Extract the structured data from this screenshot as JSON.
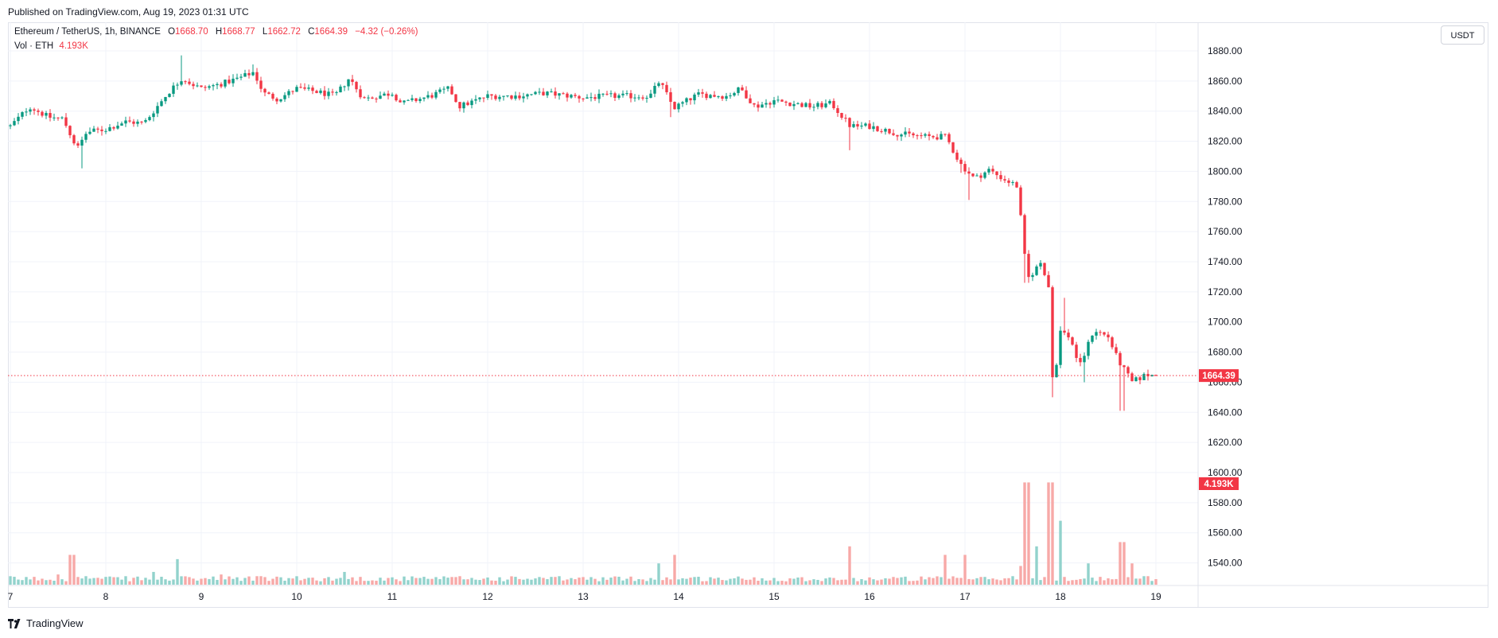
{
  "header": {
    "published": "Published on TradingView.com, Aug 19, 2023 01:31 UTC"
  },
  "legend": {
    "symbol": "Ethereum / TetherUS, 1h, BINANCE",
    "o_label": "O",
    "o_value": "1668.70",
    "h_label": "H",
    "h_value": "1668.77",
    "l_label": "L",
    "l_value": "1662.72",
    "c_label": "C",
    "c_value": "1664.39",
    "change": "−4.32 (−0.26%)",
    "vol_label": "Vol · ETH",
    "vol_value": "4.193K"
  },
  "currency": "USDT",
  "footer": {
    "brand": "TradingView"
  },
  "colors": {
    "up": "#089981",
    "down": "#f23645",
    "up_vol": "#92d2cc",
    "down_vol": "#f7a9a7",
    "grid": "#f0f3fa"
  },
  "chart_data": {
    "type": "candlestick",
    "symbol": "Ethereum / TetherUS, 1h, BINANCE",
    "x_ticks": [
      "7",
      "8",
      "9",
      "10",
      "11",
      "12",
      "13",
      "14",
      "15",
      "16",
      "17",
      "18",
      "19"
    ],
    "y_ticks": [
      1540,
      1560,
      1580,
      1600,
      1620,
      1640,
      1660,
      1680,
      1700,
      1720,
      1740,
      1760,
      1780,
      1800,
      1820,
      1840,
      1860,
      1880
    ],
    "ylim": [
      1525,
      1899
    ],
    "last_price": 1664.39,
    "last_price_label": "1664.39",
    "last_volume_label": "4.193K",
    "grid": true,
    "price_path": [
      [
        7.0,
        1830
      ],
      [
        7.2,
        1843
      ],
      [
        7.4,
        1836
      ],
      [
        7.55,
        1835
      ],
      [
        7.7,
        1815
      ],
      [
        7.8,
        1826
      ],
      [
        8.0,
        1828
      ],
      [
        8.2,
        1833
      ],
      [
        8.4,
        1832
      ],
      [
        8.5,
        1840
      ],
      [
        8.65,
        1852
      ],
      [
        8.8,
        1862
      ],
      [
        8.9,
        1858
      ],
      [
        9.0,
        1855
      ],
      [
        9.2,
        1858
      ],
      [
        9.4,
        1862
      ],
      [
        9.55,
        1866
      ],
      [
        9.65,
        1852
      ],
      [
        9.8,
        1848
      ],
      [
        10.0,
        1855
      ],
      [
        10.2,
        1853
      ],
      [
        10.4,
        1850
      ],
      [
        10.55,
        1862
      ],
      [
        10.7,
        1848
      ],
      [
        11.0,
        1852
      ],
      [
        11.1,
        1845
      ],
      [
        11.4,
        1850
      ],
      [
        11.6,
        1855
      ],
      [
        11.7,
        1843
      ],
      [
        12.0,
        1850
      ],
      [
        12.3,
        1850
      ],
      [
        12.6,
        1852
      ],
      [
        13.0,
        1849
      ],
      [
        13.3,
        1850
      ],
      [
        13.7,
        1850
      ],
      [
        13.8,
        1860
      ],
      [
        13.95,
        1842
      ],
      [
        14.2,
        1851
      ],
      [
        14.5,
        1850
      ],
      [
        14.65,
        1855
      ],
      [
        14.8,
        1843
      ],
      [
        15.0,
        1847
      ],
      [
        15.4,
        1843
      ],
      [
        15.6,
        1845
      ],
      [
        15.8,
        1830
      ],
      [
        16.0,
        1830
      ],
      [
        16.3,
        1825
      ],
      [
        16.6,
        1823
      ],
      [
        16.8,
        1823
      ],
      [
        16.95,
        1805
      ],
      [
        17.1,
        1795
      ],
      [
        17.25,
        1801
      ],
      [
        17.4,
        1795
      ],
      [
        17.55,
        1790
      ],
      [
        17.65,
        1728
      ],
      [
        17.8,
        1740
      ],
      [
        17.9,
        1718
      ],
      [
        17.93,
        1620
      ],
      [
        17.97,
        1695
      ],
      [
        18.1,
        1690
      ],
      [
        18.2,
        1670
      ],
      [
        18.35,
        1695
      ],
      [
        18.5,
        1690
      ],
      [
        18.6,
        1675
      ],
      [
        18.75,
        1660
      ],
      [
        18.9,
        1665
      ],
      [
        19.0,
        1664.39
      ]
    ],
    "spikes": [
      [
        7.75,
        1802
      ],
      [
        8.8,
        1877
      ],
      [
        9.55,
        1871
      ],
      [
        13.9,
        1836
      ],
      [
        15.8,
        1814
      ],
      [
        16.95,
        1799
      ],
      [
        17.05,
        1781
      ],
      [
        17.65,
        1726
      ],
      [
        17.93,
        1650
      ],
      [
        18.05,
        1716
      ],
      [
        18.25,
        1660
      ],
      [
        18.65,
        1641
      ]
    ],
    "volume": [
      [
        7.0,
        5
      ],
      [
        7.5,
        12
      ],
      [
        7.65,
        35
      ],
      [
        7.8,
        10
      ],
      [
        8.5,
        15
      ],
      [
        8.75,
        30
      ],
      [
        9.2,
        12
      ],
      [
        9.6,
        10
      ],
      [
        10.5,
        15
      ],
      [
        11.7,
        10
      ],
      [
        13.8,
        25
      ],
      [
        13.95,
        35
      ],
      [
        15.8,
        45
      ],
      [
        16.8,
        35
      ],
      [
        17.0,
        35
      ],
      [
        17.5,
        10
      ],
      [
        17.6,
        22
      ],
      [
        17.65,
        120
      ],
      [
        17.75,
        45
      ],
      [
        17.9,
        120
      ],
      [
        18.0,
        75
      ],
      [
        18.3,
        25
      ],
      [
        18.65,
        50
      ],
      [
        18.75,
        25
      ],
      [
        18.9,
        10
      ],
      [
        19.0,
        6
      ]
    ],
    "volume_max": 140
  }
}
